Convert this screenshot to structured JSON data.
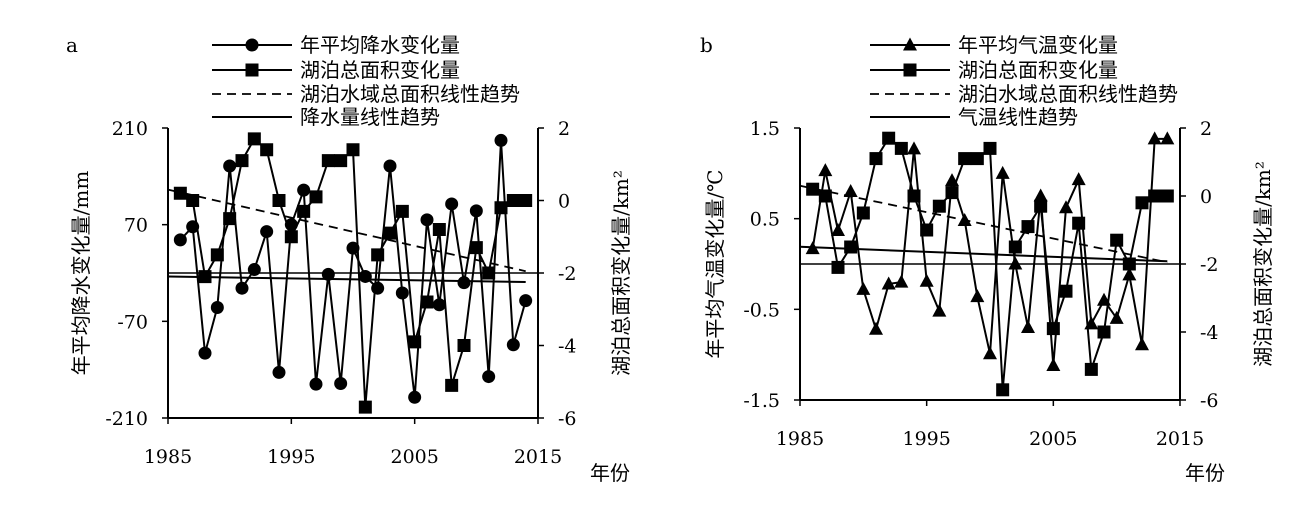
{
  "chart_data": [
    {
      "panel": "a",
      "type": "line",
      "xlabel": "年份",
      "ylabel_left": "年平均降水变化量/mm",
      "ylabel_right": "湖泊总面积变化量/km²",
      "xlim": [
        1985,
        2015
      ],
      "ylim_left": [
        -210,
        210
      ],
      "ylim_right": [
        -6,
        2
      ],
      "xticks": [
        "1985",
        "1995",
        "2005",
        "2015"
      ],
      "yticks_left": [
        "210",
        "70",
        "-70",
        "-210"
      ],
      "yticks_right": [
        "2",
        "0",
        "-2",
        "-4",
        "-6"
      ],
      "legend": [
        "年平均降水变化量",
        "湖泊总面积变化量",
        "湖泊水域总面积线性趋势",
        "降水量线性趋势"
      ],
      "legend_position": "top",
      "series": [
        {
          "name": "年平均降水变化量",
          "axis": "left",
          "marker": "circle",
          "x": [
            1986,
            1987,
            1988,
            1989,
            1990,
            1991,
            1992,
            1993,
            1994,
            1995,
            1996,
            1997,
            1998,
            1999,
            2000,
            2001,
            2002,
            2003,
            2004,
            2005,
            2006,
            2007,
            2008,
            2009,
            2010,
            2011,
            2012,
            2013,
            2014
          ],
          "values": [
            48,
            67,
            -116,
            -50,
            155,
            -22,
            5,
            60,
            -144,
            70,
            120,
            -161,
            -2,
            -160,
            36,
            -5,
            -22,
            155,
            -29,
            -180,
            77,
            -46,
            100,
            -14,
            90,
            -150,
            192,
            -104,
            -40
          ]
        },
        {
          "name": "湖泊总面积变化量",
          "axis": "right",
          "marker": "square",
          "x": [
            1986,
            1987,
            1988,
            1989,
            1990,
            1991,
            1992,
            1993,
            1994,
            1995,
            1996,
            1997,
            1998,
            1999,
            2000,
            2001,
            2002,
            2003,
            2004,
            2005,
            2006,
            2007,
            2008,
            2009,
            2010,
            2011,
            2012,
            2013,
            2014
          ],
          "values": [
            0.2,
            0.0,
            -2.1,
            -1.5,
            -0.5,
            1.1,
            1.7,
            1.4,
            0.0,
            -1.0,
            -0.3,
            0.1,
            1.1,
            1.1,
            1.4,
            -5.7,
            -1.5,
            -0.9,
            -0.3,
            -3.9,
            -2.8,
            -0.8,
            -5.1,
            -4.0,
            -1.3,
            -2.0,
            -0.2,
            0.0,
            0.0
          ]
        },
        {
          "name": "湖泊水域总面积线性趋势",
          "axis": "right",
          "style": "dashed",
          "x": [
            1985,
            2014
          ],
          "values": [
            0.3,
            -1.95
          ]
        },
        {
          "name": "降水量线性趋势",
          "axis": "left",
          "style": "solid",
          "x": [
            1985,
            2014
          ],
          "values": [
            -5,
            -13
          ]
        }
      ]
    },
    {
      "panel": "b",
      "type": "line",
      "xlabel": "年份",
      "ylabel_left": "年平均气温变化量/℃",
      "ylabel_right": "湖泊总面积变化量/km²",
      "xlim": [
        1985,
        2015
      ],
      "ylim_left": [
        -1.5,
        1.5
      ],
      "ylim_right": [
        -6,
        2
      ],
      "xticks": [
        "1985",
        "1995",
        "2005",
        "2015"
      ],
      "yticks_left": [
        "1.5",
        "0.5",
        "-0.5",
        "-1.5"
      ],
      "yticks_right": [
        "2",
        "0",
        "-2",
        "-4",
        "-6"
      ],
      "legend": [
        "年平均气温变化量",
        "湖泊总面积变化量",
        "湖泊水域总面积线性趋势",
        "气温线性趋势"
      ],
      "legend_position": "top",
      "series": [
        {
          "name": "年平均气温变化量",
          "axis": "left",
          "marker": "triangle",
          "x": [
            1986,
            1987,
            1988,
            1989,
            1990,
            1991,
            1992,
            1993,
            1994,
            1995,
            1996,
            1997,
            1998,
            1999,
            2000,
            2001,
            2002,
            2003,
            2004,
            2005,
            2006,
            2007,
            2008,
            2009,
            2010,
            2011,
            2012,
            2013,
            2014
          ],
          "values": [
            0.17,
            1.03,
            0.37,
            0.8,
            -0.28,
            -0.72,
            -0.22,
            -0.2,
            1.27,
            -0.19,
            -0.52,
            0.92,
            0.48,
            -0.36,
            -0.99,
            1.0,
            0.0,
            -0.7,
            0.75,
            -1.12,
            0.62,
            0.93,
            -0.66,
            -0.4,
            -0.6,
            -0.12,
            -0.89,
            1.38,
            1.38
          ]
        },
        {
          "name": "湖泊总面积变化量",
          "axis": "right",
          "marker": "square",
          "x": [
            1986,
            1987,
            1988,
            1989,
            1990,
            1991,
            1992,
            1993,
            1994,
            1995,
            1996,
            1997,
            1998,
            1999,
            2000,
            2001,
            2002,
            2003,
            2004,
            2005,
            2006,
            2007,
            2008,
            2009,
            2010,
            2011,
            2012,
            2013,
            2014
          ],
          "values": [
            0.2,
            0.0,
            -2.1,
            -1.5,
            -0.5,
            1.1,
            1.7,
            1.4,
            0.0,
            -1.0,
            -0.3,
            0.1,
            1.1,
            1.1,
            1.4,
            -5.7,
            -1.5,
            -0.9,
            -0.3,
            -3.9,
            -2.8,
            -0.8,
            -5.1,
            -4.0,
            -1.3,
            -2.0,
            -0.2,
            0.0,
            0.0
          ]
        },
        {
          "name": "湖泊水域总面积线性趋势",
          "axis": "right",
          "style": "dashed",
          "x": [
            1985,
            2014
          ],
          "values": [
            0.3,
            -1.95
          ]
        },
        {
          "name": "气温线性趋势",
          "axis": "left",
          "style": "solid",
          "x": [
            1985,
            2014
          ],
          "values": [
            0.19,
            0.03
          ]
        }
      ]
    }
  ]
}
